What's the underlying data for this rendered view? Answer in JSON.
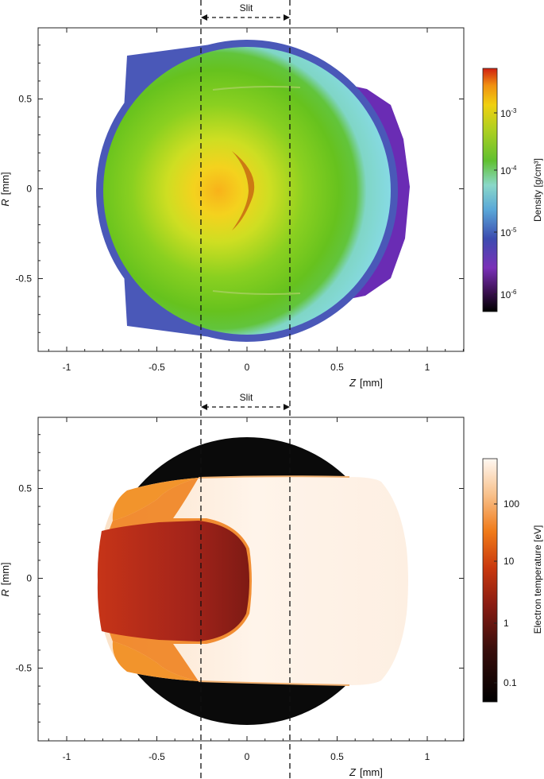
{
  "chart_data": [
    {
      "type": "heatmap",
      "panel": "top",
      "title": "",
      "xlabel_var": "Z",
      "xlabel_unit": "[mm]",
      "ylabel_var": "R",
      "ylabel_unit": "[mm]",
      "xlim": [
        -1.2,
        1.2
      ],
      "ylim": [
        -0.9,
        0.9
      ],
      "xticks": [
        -1,
        -0.5,
        0,
        0.5,
        1
      ],
      "xtick_labels": [
        "-1",
        "-0.5",
        "0",
        "0.5",
        "1"
      ],
      "yticks": [
        0.5,
        0,
        -0.5
      ],
      "ytick_labels": [
        "0.5",
        "0",
        "-0.5"
      ],
      "annotation": "Slit",
      "slit_z": [
        -0.25,
        0.25
      ],
      "colorbar": {
        "label": "Density [g/cm³]",
        "scale": "log",
        "range": [
          4e-07,
          0.006
        ],
        "ticks": [
          0.001,
          0.0001,
          1e-05,
          1e-06
        ],
        "tick_bases": [
          "10",
          "10",
          "10",
          "10"
        ],
        "tick_exps": [
          "-3",
          "-4",
          "-5",
          "-6"
        ]
      },
      "colors": {
        "outer": "#80d8e0",
        "green": "#6cc61c",
        "core": "#f5ae14",
        "blue_edge": "#4a58b8",
        "purple_lobe": "#6a2cb4"
      }
    },
    {
      "type": "heatmap",
      "panel": "bottom",
      "title": "",
      "xlabel_var": "Z",
      "xlabel_unit": "[mm]",
      "ylabel_var": "R",
      "ylabel_unit": "[mm]",
      "xlim": [
        -1.2,
        1.2
      ],
      "ylim": [
        -0.9,
        0.9
      ],
      "xticks": [
        -1,
        -0.5,
        0,
        0.5,
        1
      ],
      "xtick_labels": [
        "-1",
        "-0.5",
        "0",
        "0.5",
        "1"
      ],
      "yticks": [
        0.5,
        0,
        -0.5
      ],
      "ytick_labels": [
        "0.5",
        "0",
        "-0.5"
      ],
      "annotation": "Slit",
      "slit_z": [
        -0.25,
        0.25
      ],
      "colorbar": {
        "label": "Electron temperature [eV]",
        "scale": "log",
        "range": [
          0.05,
          500
        ],
        "ticks": [
          100,
          10,
          1,
          0.1
        ],
        "tick_labels": [
          "100",
          "10",
          "1",
          "0.1"
        ]
      },
      "colors": {
        "black": "#0a0a0a",
        "hot_white": "#fdf0e4",
        "orange": "#f08a28",
        "dark_red": "#9a2014"
      }
    }
  ]
}
